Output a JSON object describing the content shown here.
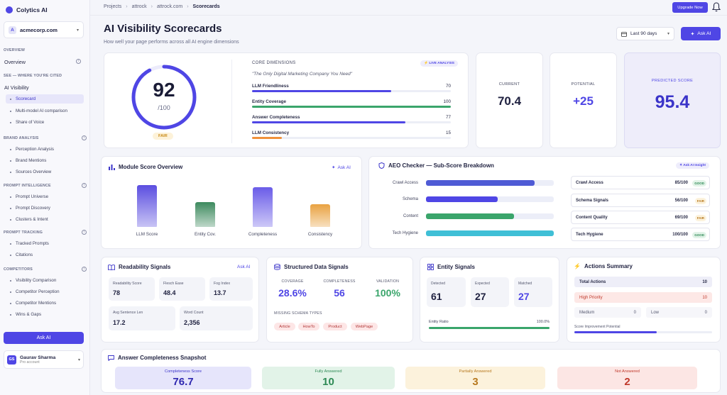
{
  "app": {
    "name": "Colytics AI"
  },
  "workspace": {
    "avatar": "A",
    "name": "acmecorp.com"
  },
  "sidebar": {
    "overview_section": "OVERVIEW",
    "overview_item": "Overview",
    "ai_section": "SEE — WHERE YOU'RE CITED",
    "ai_item": "AI Visibility",
    "ai_subs": [
      "Scorecard",
      "Multi-model AI comparison",
      "Share of Voice"
    ],
    "brand_section": "BRAND ANALYSIS",
    "brand_subs": [
      "Perception Analysis",
      "Brand Mentions",
      "Sources Overview"
    ],
    "prompt_section": "PROMPT INTELLIGENCE",
    "prompt_subs": [
      "Prompt Universe",
      "Prompt Discovery",
      "Clusters & Intent"
    ],
    "tracking_section": "PROMPT TRACKING",
    "tracking_subs": [
      "Tracked Prompts",
      "Citations"
    ],
    "competitors_section": "COMPETITORS",
    "competitors_subs": [
      "Visibility Comparison",
      "Competitor Perception",
      "Competitor Mentions",
      "Wins & Gaps"
    ],
    "ask_ai": "Ask AI",
    "user_initials": "GS",
    "user_name": "Gaurav Sharma",
    "user_plan": "Pro account"
  },
  "breadcrumb": [
    "Projects",
    "attrock",
    "attrock.com",
    "Scorecards"
  ],
  "topbar": {
    "upgrade": "Upgrade Now"
  },
  "page": {
    "title": "AI Visibility Scorecards",
    "subtitle": "How well your page performs across all AI engine dimensions",
    "range": "Last 90 days",
    "ask_ai": "Ask AI"
  },
  "score": {
    "value": "92",
    "max": "/100",
    "label": "FAIR",
    "fraction": 0.92
  },
  "core": {
    "title": "CORE DIMENSIONS",
    "badge": "LIVE ANALYSIS",
    "quote": "\"The Only Digital Marketing Company You Need\"",
    "dims": [
      {
        "name": "LLM Friendliness",
        "value": 70,
        "color": "#4f46e5"
      },
      {
        "name": "Entity Coverage",
        "value": 100,
        "color": "#3aa56b"
      },
      {
        "name": "Answer Completeness",
        "value": 77,
        "color": "#4f46e5"
      },
      {
        "name": "LLM Consistency",
        "value": 15,
        "color": "#f0913a"
      }
    ]
  },
  "kpis": {
    "current_label": "CURRENT",
    "current": "70.4",
    "potential_label": "POTENTIAL",
    "potential": "+25",
    "predicted_label": "PREDICTED SCORE",
    "predicted": "95.4"
  },
  "module": {
    "title": "Module Score Overview",
    "ask": "Ask AI",
    "bars": [
      {
        "label": "LLM Score",
        "value": 92,
        "color": "#5b4ee0"
      },
      {
        "label": "Entity Cov.",
        "value": 55,
        "color": "#3d8a5e"
      },
      {
        "label": "Completeness",
        "value": 88,
        "color": "#6a5ce8"
      },
      {
        "label": "Consistency",
        "value": 50,
        "color": "#e9a241"
      }
    ]
  },
  "aeo": {
    "title": "AEO Checker — Sub-Score Breakdown",
    "ask": "Ask AI Insight",
    "bars": [
      {
        "label": "Crawl Access",
        "value": 85,
        "color": "#4f5bd5"
      },
      {
        "label": "Schema",
        "value": 56,
        "color": "#4f46e5"
      },
      {
        "label": "Content",
        "value": 69,
        "color": "#3aa56b"
      },
      {
        "label": "Tech Hygiene",
        "value": 100,
        "color": "#3fbfd6"
      }
    ],
    "items": [
      {
        "name": "Crawl Access",
        "score": "85/100",
        "badge": "GOOD"
      },
      {
        "name": "Schema Signals",
        "score": "56/100",
        "badge": "FAIR"
      },
      {
        "name": "Content Quality",
        "score": "69/100",
        "badge": "FAIR"
      },
      {
        "name": "Tech Hygiene",
        "score": "100/100",
        "badge": "GOOD"
      }
    ]
  },
  "readability": {
    "title": "Readability Signals",
    "ask": "Ask AI",
    "stats": [
      {
        "label": "Readability Score",
        "value": "78"
      },
      {
        "label": "Flesch Ease",
        "value": "48.4"
      },
      {
        "label": "Fog Index",
        "value": "13.7"
      },
      {
        "label": "Avg Sentence Len",
        "value": "17.2"
      },
      {
        "label": "Word Count",
        "value": "2,356"
      }
    ]
  },
  "structured": {
    "title": "Structured Data Signals",
    "coverage_label": "COVERAGE",
    "coverage": "28.6%",
    "completeness_label": "COMPLETENESS",
    "completeness": "56",
    "validation_label": "VALIDATION",
    "validation": "100%",
    "missing_label": "MISSING SCHEMA TYPES",
    "missing": [
      "Article",
      "HowTo",
      "Product",
      "WebPage"
    ]
  },
  "entity": {
    "title": "Entity Signals",
    "detected_label": "Detected",
    "detected": "61",
    "expected_label": "Expected",
    "expected": "27",
    "matched_label": "Matched",
    "matched": "27",
    "ratio_label": "Entity Ratio",
    "ratio": "100.0%",
    "ratio_fraction": 1.0
  },
  "actions": {
    "title": "Actions Summary",
    "total_label": "Total Actions",
    "total": "10",
    "high_label": "High Priority",
    "high": "10",
    "medium_label": "Medium",
    "medium": "0",
    "low_label": "Low",
    "low": "0",
    "potential_label": "Score Improvement Potential",
    "potential_fraction": 0.6
  },
  "snapshot": {
    "title": "Answer Completeness Snapshot",
    "items": [
      {
        "label": "Completeness Score",
        "value": "76.7"
      },
      {
        "label": "Fully Answered",
        "value": "10"
      },
      {
        "label": "Partially Answered",
        "value": "3"
      },
      {
        "label": "Not Answered",
        "value": "2"
      }
    ]
  },
  "colors": {
    "accent": "#4f46e5",
    "good": "#3aa56b",
    "warn": "#e9a241",
    "bad": "#d9534f"
  }
}
